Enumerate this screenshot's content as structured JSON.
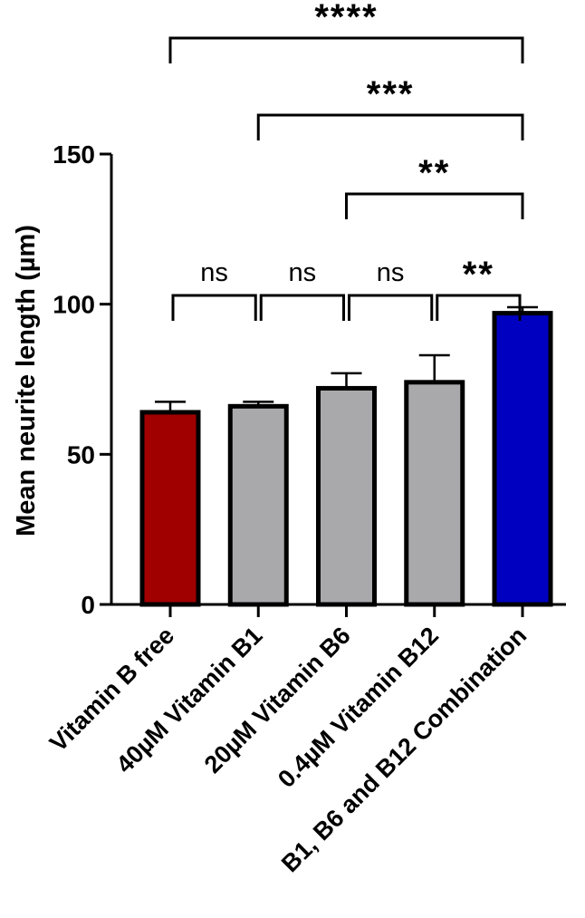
{
  "chart_data": {
    "type": "bar",
    "title": "",
    "xlabel": "",
    "ylabel": "Mean neurite length (µm)",
    "ylim": [
      0,
      150
    ],
    "yticks": [
      0,
      50,
      100,
      150
    ],
    "categories": [
      "Vitamin B free",
      "40µM Vitamin B1",
      "20µM Vitamin B6",
      "0.4µM Vitamin B12",
      "B1, B6 and B12 Combination"
    ],
    "values": [
      64,
      66,
      72,
      74,
      97
    ],
    "errors": [
      3.5,
      1.5,
      5,
      9,
      2
    ],
    "bar_colors": [
      "#a00000",
      "#a9a9ab",
      "#a9a9ab",
      "#a9a9ab",
      "#0000c0"
    ],
    "significance": [
      {
        "from": 0,
        "to": 1,
        "label": "ns",
        "level": 0
      },
      {
        "from": 1,
        "to": 2,
        "label": "ns",
        "level": 0
      },
      {
        "from": 2,
        "to": 3,
        "label": "ns",
        "level": 0
      },
      {
        "from": 3,
        "to": 4,
        "label": "**",
        "level": 0
      },
      {
        "from": 2,
        "to": 4,
        "label": "**",
        "level": 1
      },
      {
        "from": 1,
        "to": 4,
        "label": "***",
        "level": 2
      },
      {
        "from": 0,
        "to": 4,
        "label": "****",
        "level": 3
      }
    ]
  }
}
